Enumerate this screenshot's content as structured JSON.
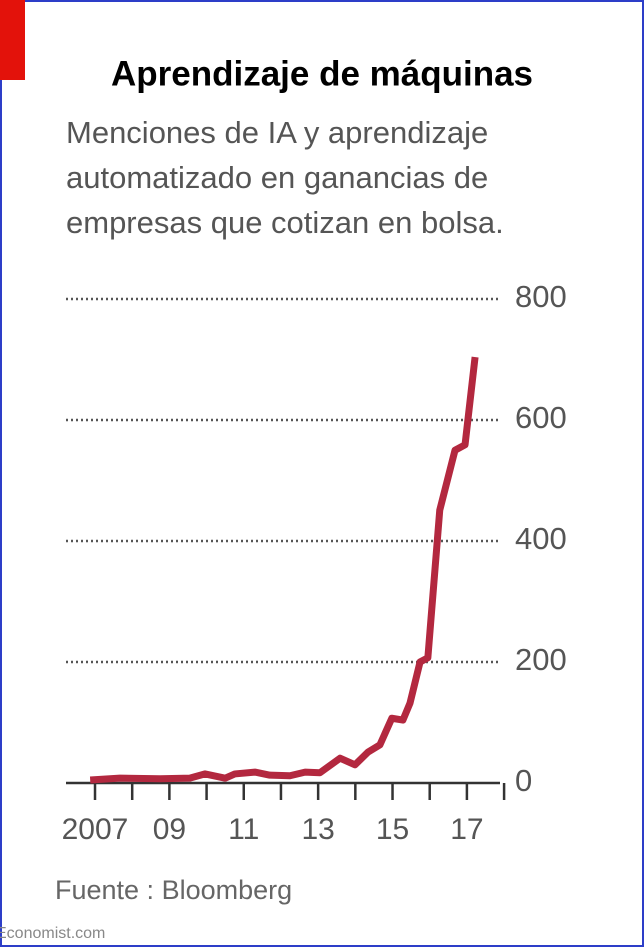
{
  "chart_data": {
    "type": "line",
    "title": "Aprendizaje de máquinas",
    "subtitle": [
      "Menciones de IA y aprendizaje",
      "automatizado en ganancias de",
      "empresas que cotizan en bolsa."
    ],
    "source": "Fuente : Bloomberg",
    "credit": "Economist.com",
    "x": [
      2006.87,
      2007.67,
      2008.75,
      2009.55,
      2009.96,
      2010.5,
      2010.76,
      2011.3,
      2011.7,
      2012.24,
      2012.65,
      2013.05,
      2013.59,
      2013.99,
      2014.34,
      2014.66,
      2014.98,
      2015.28,
      2015.47,
      2015.74,
      2015.95,
      2016.27,
      2016.68,
      2016.95,
      2017.22
    ],
    "series": [
      {
        "color": "#b3283f",
        "values": [
          5,
          8,
          7,
          8,
          15,
          8,
          15,
          18,
          13,
          12,
          18,
          17,
          41,
          30,
          51,
          63,
          107,
          104,
          132,
          200,
          207,
          451,
          550,
          559,
          704
        ]
      }
    ],
    "xlim": [
      2006.22,
      2017.89
    ],
    "xticks": [
      {
        "value": 2007,
        "label": "2007"
      },
      {
        "value": 2009,
        "label": "09"
      },
      {
        "value": 2011,
        "label": "11"
      },
      {
        "value": 2013,
        "label": "13"
      },
      {
        "value": 2015,
        "label": "15"
      },
      {
        "value": 2017,
        "label": "17"
      }
    ],
    "xminorticks": [
      2008,
      2010,
      2012,
      2014,
      2016,
      2018
    ],
    "ylim": [
      0,
      800
    ],
    "yticks": [
      0,
      200,
      400,
      600,
      800
    ],
    "grid": true
  }
}
